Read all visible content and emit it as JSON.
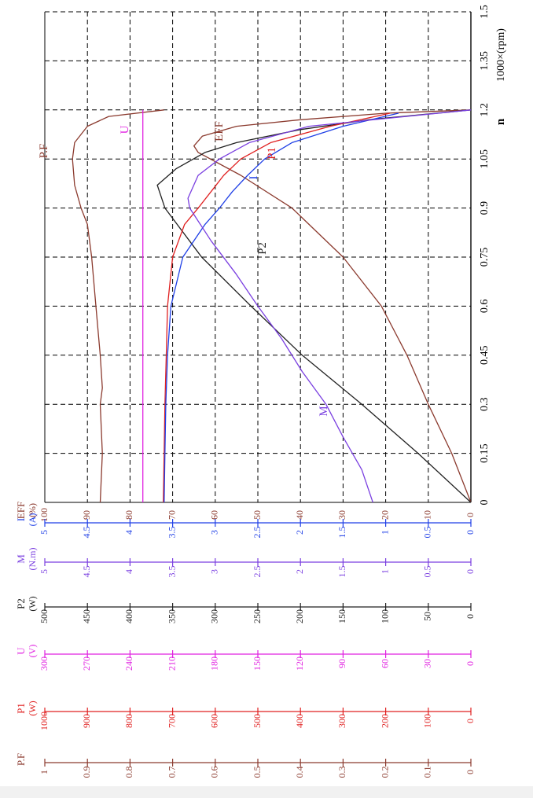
{
  "chart_data": {
    "type": "line",
    "orientation": "rotated-90-clockwise",
    "xlabel_symbol": "n",
    "xlabel_unit": "1000×(rpm)",
    "x_ticks": [
      "0",
      "0.15",
      "0.3",
      "0.45",
      "0.6",
      "0.75",
      "0.9",
      "1.05",
      "1.2",
      "1.35",
      "1.5"
    ],
    "xlim": [
      0,
      1.5
    ],
    "grid": true,
    "axes": [
      {
        "id": "eff",
        "name": "EFF",
        "unit": "(%)",
        "color": "#8b3a2e",
        "min": 0,
        "max": 100,
        "ticks": [
          "0",
          "10",
          "20",
          "30",
          "40",
          "50",
          "60",
          "70",
          "80",
          "90",
          "100"
        ]
      },
      {
        "id": "i",
        "name": "I",
        "unit": "(A)",
        "color": "#1f3fe6",
        "min": 0,
        "max": 5,
        "ticks": [
          "0",
          "0.5",
          "1",
          "1.5",
          "2",
          "2.5",
          "3",
          "3.5",
          "4",
          "4.5",
          "5"
        ]
      },
      {
        "id": "m",
        "name": "M",
        "unit": "(N.m)",
        "color": "#7a3fe0",
        "min": 0,
        "max": 5,
        "ticks": [
          "0",
          "0.5",
          "1",
          "1.5",
          "2",
          "2.5",
          "3",
          "3.5",
          "4",
          "4.5",
          "5"
        ]
      },
      {
        "id": "p2",
        "name": "P2",
        "unit": "(W)",
        "color": "#222222",
        "min": 0,
        "max": 500,
        "ticks": [
          "0",
          "50",
          "100",
          "150",
          "200",
          "250",
          "300",
          "350",
          "400",
          "450",
          "500"
        ]
      },
      {
        "id": "u",
        "name": "U",
        "unit": "(V)",
        "color": "#e020e0",
        "min": 0,
        "max": 300,
        "ticks": [
          "0",
          "30",
          "60",
          "90",
          "120",
          "150",
          "180",
          "210",
          "240",
          "270",
          "300"
        ]
      },
      {
        "id": "p1",
        "name": "P1",
        "unit": "(W)",
        "color": "#e02020",
        "min": 0,
        "max": 1000,
        "ticks": [
          "0",
          "100",
          "200",
          "300",
          "400",
          "500",
          "600",
          "700",
          "800",
          "900",
          "1000"
        ]
      },
      {
        "id": "pf",
        "name": "P.F",
        "unit": "",
        "color": "#8b3a2e",
        "min": 0,
        "max": 1,
        "ticks": [
          "0",
          "0.1",
          "0.2",
          "0.3",
          "0.4",
          "0.5",
          "0.6",
          "0.7",
          "0.8",
          "0.9",
          "1"
        ]
      }
    ],
    "series": [
      {
        "name": "P.F",
        "axis": "pf",
        "color": "#8b3a2e",
        "x": [
          0,
          0.15,
          0.3,
          0.35,
          0.45,
          0.6,
          0.75,
          0.85,
          0.9,
          0.97,
          1.05,
          1.1,
          1.15,
          1.18,
          1.2
        ],
        "y": [
          0.87,
          0.865,
          0.87,
          0.865,
          0.87,
          0.88,
          0.89,
          0.9,
          0.915,
          0.93,
          0.935,
          0.93,
          0.9,
          0.85,
          0.72
        ]
      },
      {
        "name": "U",
        "axis": "u",
        "color": "#e020e0",
        "x": [
          0,
          1.2
        ],
        "y": [
          231,
          231
        ]
      },
      {
        "name": "EFF",
        "axis": "eff",
        "color": "#8b3a2e",
        "x": [
          0,
          0.15,
          0.3,
          0.45,
          0.6,
          0.75,
          0.9,
          1.0,
          1.07,
          1.09,
          1.12,
          1.15,
          1.17,
          1.19,
          1.2
        ],
        "y": [
          0,
          4.5,
          10,
          15,
          21,
          30,
          42,
          54,
          64,
          65,
          63,
          55,
          40,
          20,
          0
        ]
      },
      {
        "name": "P2",
        "axis": "p2",
        "color": "#222222",
        "x": [
          0,
          0.15,
          0.3,
          0.45,
          0.6,
          0.75,
          0.9,
          0.97,
          1.02,
          1.07,
          1.1,
          1.14,
          1.17,
          1.2
        ],
        "y": [
          0,
          62,
          128,
          198,
          258,
          316,
          359,
          368,
          346,
          312,
          275,
          200,
          120,
          0
        ]
      },
      {
        "name": "P1",
        "axis": "p1",
        "color": "#e02020",
        "x": [
          0,
          0.15,
          0.3,
          0.45,
          0.6,
          0.75,
          0.85,
          0.9,
          0.95,
          1.0,
          1.05,
          1.1,
          1.15,
          1.19
        ],
        "y": [
          722,
          720,
          718,
          715,
          712,
          700,
          672,
          640,
          610,
          580,
          540,
          470,
          330,
          190
        ]
      },
      {
        "name": "I",
        "axis": "i",
        "color": "#1f3fe6",
        "x": [
          0,
          0.15,
          0.3,
          0.45,
          0.6,
          0.75,
          0.85,
          0.9,
          0.95,
          1.0,
          1.05,
          1.1,
          1.15,
          1.19
        ],
        "y": [
          3.6,
          3.59,
          3.58,
          3.56,
          3.52,
          3.38,
          3.12,
          2.95,
          2.8,
          2.62,
          2.42,
          2.1,
          1.5,
          0.85
        ]
      },
      {
        "name": "M",
        "axis": "m",
        "color": "#7a3fe0",
        "x": [
          0,
          0.1,
          0.2,
          0.3,
          0.4,
          0.5,
          0.6,
          0.7,
          0.8,
          0.9,
          0.93,
          1.0,
          1.05,
          1.1,
          1.15,
          1.2
        ],
        "y": [
          1.15,
          1.28,
          1.5,
          1.7,
          1.98,
          2.22,
          2.5,
          2.76,
          3.05,
          3.3,
          3.32,
          3.2,
          2.95,
          2.6,
          1.9,
          0
        ]
      }
    ],
    "annotations": [
      {
        "text": "P.F",
        "color": "#8b3a2e"
      },
      {
        "text": "U",
        "color": "#e020e0"
      },
      {
        "text": "EFF",
        "color": "#8b3a2e"
      },
      {
        "text": "P1",
        "color": "#e02020"
      },
      {
        "text": "I",
        "color": "#1f3fe6"
      },
      {
        "text": "P2",
        "color": "#222222"
      },
      {
        "text": "M",
        "color": "#7a3fe0"
      }
    ]
  }
}
